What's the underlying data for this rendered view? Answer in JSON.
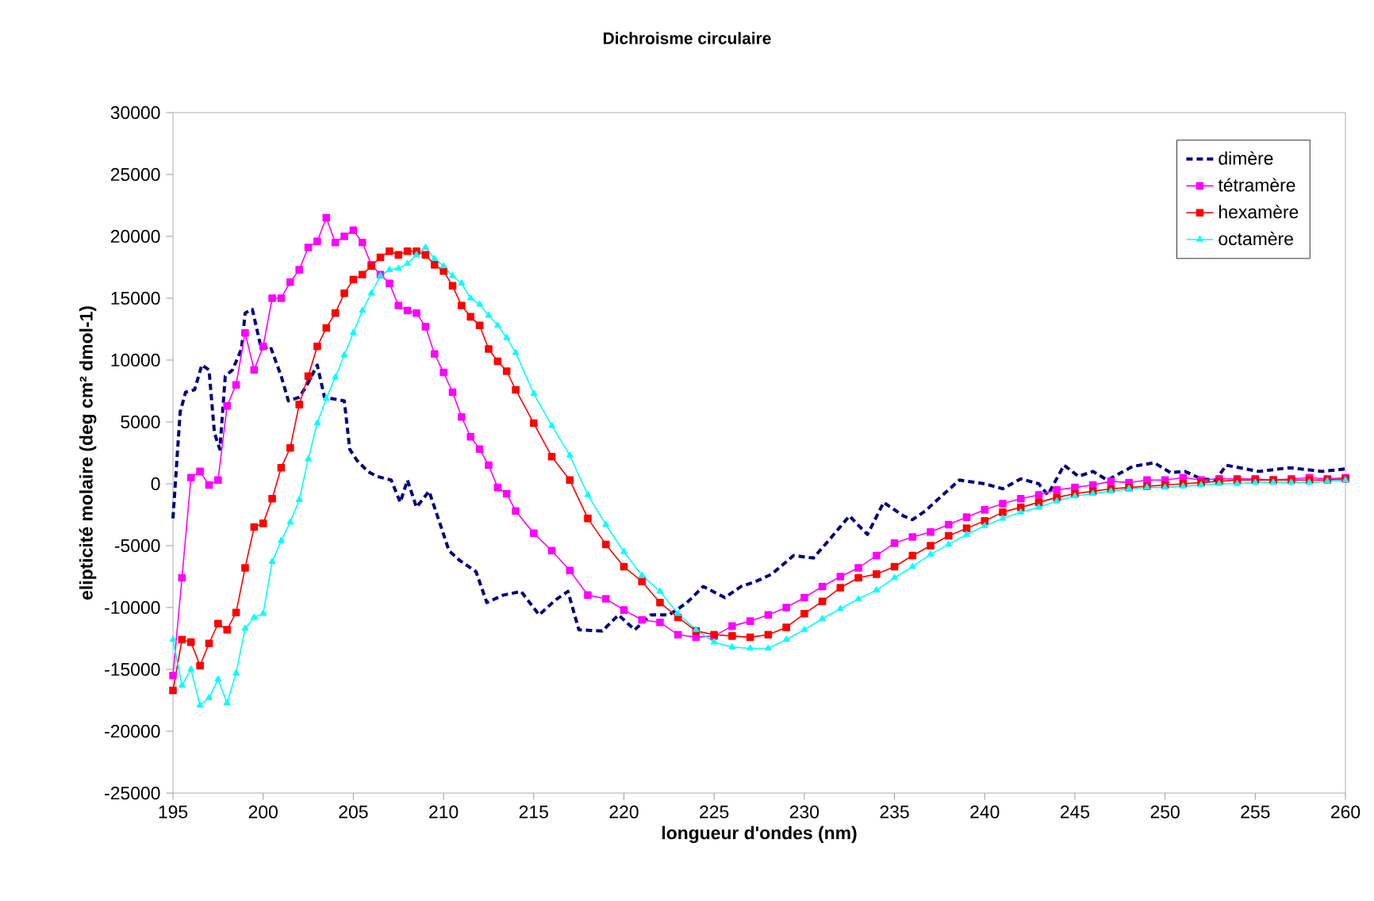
{
  "chart_data": {
    "type": "line",
    "title": "Dichroisme circulaire",
    "xlabel": "longueur d'ondes (nm)",
    "ylabel": "elipticité molaire (deg cm² dmol-1)",
    "xlim": [
      195,
      260
    ],
    "xticks": [
      195,
      200,
      205,
      210,
      215,
      220,
      225,
      230,
      235,
      240,
      245,
      250,
      255,
      260
    ],
    "ylim": [
      -25000,
      30000
    ],
    "yticks": [
      -25000,
      -20000,
      -15000,
      -10000,
      -5000,
      0,
      5000,
      10000,
      15000,
      20000,
      25000,
      30000
    ],
    "grid": false,
    "legend": "top right",
    "series": [
      {
        "name": "dimère",
        "color": "#000080",
        "line_style": "dashed",
        "marker": "none",
        "x": [
          195,
          195.2,
          195.4,
          195.7,
          196.2,
          196.6,
          197,
          197.3,
          197.6,
          197.9,
          198.3,
          198.8,
          199,
          199.4,
          199.9,
          200.4,
          201,
          201.4,
          202,
          202.4,
          203,
          203.4,
          204.5,
          204.8,
          205.2,
          205.8,
          206.3,
          207.1,
          207.6,
          208,
          208.5,
          209.2,
          209.8,
          210.3,
          210.9,
          211.8,
          212.4,
          213.3,
          214.3,
          215.3,
          216.2,
          216.9,
          217.5,
          218.8,
          219.7,
          220.6,
          221.5,
          222.5,
          223.5,
          224.4,
          225.6,
          226.5,
          227.3,
          228.2,
          229.4,
          230.5,
          231.4,
          232.5,
          233.5,
          234.4,
          235.5,
          236,
          236.7,
          237.6,
          238.6,
          240,
          241,
          242,
          243,
          243.5,
          244.4,
          245.2,
          246,
          246.8,
          248.2,
          249.4,
          250.3,
          251.1,
          252,
          252.8,
          253.4,
          255.2,
          256.9,
          258.7,
          260
        ],
        "values": [
          -2800,
          1500,
          5800,
          7400,
          7600,
          9600,
          9200,
          4100,
          2800,
          8700,
          9200,
          10900,
          13800,
          14100,
          10900,
          11100,
          8700,
          6700,
          7000,
          7900,
          9600,
          7000,
          6700,
          2800,
          1900,
          1000,
          600,
          300,
          -1500,
          300,
          -1900,
          -600,
          -3200,
          -5400,
          -6200,
          -7100,
          -9600,
          -9000,
          -8700,
          -10600,
          -9400,
          -8700,
          -11800,
          -11900,
          -10600,
          -11800,
          -10600,
          -10600,
          -9600,
          -8300,
          -9200,
          -8300,
          -7900,
          -7300,
          -5800,
          -6000,
          -4500,
          -2600,
          -4100,
          -1500,
          -2600,
          -2900,
          -2200,
          -1000,
          300,
          0,
          -400,
          400,
          0,
          -900,
          1500,
          600,
          1000,
          300,
          1400,
          1700,
          900,
          1000,
          400,
          300,
          1500,
          1000,
          1300,
          1000,
          1200
        ]
      },
      {
        "name": "tétramère",
        "color": "#ff00ff",
        "line_style": "solid",
        "marker": "square",
        "x": [
          195,
          195.5,
          196,
          196.5,
          197,
          197.5,
          198,
          198.5,
          199,
          199.5,
          200,
          200.5,
          201,
          201.5,
          202,
          202.5,
          203,
          203.5,
          204,
          204.5,
          205,
          205.5,
          206,
          206.5,
          207,
          207.5,
          208,
          208.5,
          209,
          209.5,
          210,
          210.5,
          211,
          211.5,
          212,
          212.5,
          213,
          213.5,
          214,
          215,
          216,
          217,
          218,
          219,
          220,
          221,
          222,
          223,
          224,
          225,
          226,
          227,
          228,
          229,
          230,
          231,
          232,
          233,
          234,
          235,
          236,
          237,
          238,
          239,
          240,
          241,
          242,
          243,
          244,
          245,
          246,
          247,
          248,
          249,
          250,
          251,
          252,
          253,
          254,
          255,
          256,
          257,
          258,
          259,
          260
        ],
        "values": [
          -15500,
          -7600,
          500,
          1000,
          -100,
          300,
          6300,
          8000,
          12200,
          9200,
          11100,
          15000,
          15000,
          16300,
          17300,
          19100,
          19600,
          21500,
          19500,
          20000,
          20500,
          19500,
          17700,
          16900,
          16200,
          14400,
          14000,
          13800,
          12700,
          10500,
          9000,
          7400,
          5400,
          3800,
          2800,
          1500,
          -300,
          -800,
          -2200,
          -4000,
          -5400,
          -7000,
          -9000,
          -9300,
          -10200,
          -11000,
          -11200,
          -12200,
          -12400,
          -12300,
          -11500,
          -11100,
          -10600,
          -10000,
          -9200,
          -8300,
          -7500,
          -6800,
          -5800,
          -4800,
          -4300,
          -3900,
          -3300,
          -2700,
          -2100,
          -1600,
          -1200,
          -900,
          -500,
          -300,
          -100,
          200,
          100,
          300,
          300,
          500,
          300,
          400,
          400,
          400,
          300,
          400,
          500,
          400,
          500
        ]
      },
      {
        "name": "hexamère",
        "color": "#ff0000",
        "line_style": "solid",
        "marker": "square",
        "x": [
          195,
          195.5,
          196,
          196.5,
          197,
          197.5,
          198,
          198.5,
          199,
          199.5,
          200,
          200.5,
          201,
          201.5,
          202,
          202.5,
          203,
          203.5,
          204,
          204.5,
          205,
          205.5,
          206,
          206.5,
          207,
          207.5,
          208,
          208.5,
          209,
          209.5,
          210,
          210.5,
          211,
          211.5,
          212,
          212.5,
          213,
          213.5,
          214,
          215,
          216,
          217,
          218,
          219,
          220,
          221,
          222,
          223,
          224,
          225,
          226,
          227,
          228,
          229,
          230,
          231,
          232,
          233,
          234,
          235,
          236,
          237,
          238,
          239,
          240,
          241,
          242,
          243,
          244,
          245,
          246,
          247,
          248,
          249,
          250,
          251,
          252,
          253,
          254,
          255,
          256,
          257,
          258,
          259,
          260
        ],
        "values": [
          -16700,
          -12600,
          -12800,
          -14700,
          -12900,
          -11300,
          -11800,
          -10400,
          -6800,
          -3500,
          -3200,
          -1200,
          1300,
          2900,
          6400,
          8700,
          11100,
          12600,
          13800,
          15400,
          16500,
          16900,
          17600,
          18300,
          18800,
          18500,
          18800,
          18800,
          18500,
          17700,
          17200,
          16000,
          14400,
          13500,
          12800,
          10900,
          9900,
          9100,
          7600,
          4900,
          2200,
          300,
          -2800,
          -4900,
          -6700,
          -7900,
          -9600,
          -10800,
          -11900,
          -12200,
          -12300,
          -12400,
          -12200,
          -11600,
          -10500,
          -9500,
          -8400,
          -7600,
          -7300,
          -6700,
          -5800,
          -5000,
          -4200,
          -3600,
          -3000,
          -2300,
          -1900,
          -1500,
          -1100,
          -800,
          -600,
          -400,
          -300,
          -200,
          -100,
          0,
          100,
          200,
          300,
          300,
          300,
          300,
          300,
          300,
          400
        ]
      },
      {
        "name": "octamère",
        "color": "#00ffff",
        "line_style": "solid",
        "marker": "triangle",
        "x": [
          195,
          195.5,
          196,
          196.5,
          197,
          197.5,
          198,
          198.5,
          199,
          199.5,
          200,
          200.5,
          201,
          201.5,
          202,
          202.5,
          203,
          203.5,
          204,
          204.5,
          205,
          205.5,
          206,
          206.5,
          207,
          207.5,
          208,
          208.5,
          209,
          209.5,
          210,
          210.5,
          211,
          211.5,
          212,
          212.5,
          213,
          213.5,
          214,
          215,
          216,
          217,
          218,
          219,
          220,
          221,
          222,
          223,
          224,
          225,
          226,
          227,
          228,
          229,
          230,
          231,
          232,
          233,
          234,
          235,
          236,
          237,
          238,
          239,
          240,
          241,
          242,
          243,
          244,
          245,
          246,
          247,
          248,
          249,
          250,
          251,
          252,
          253,
          254,
          255,
          256,
          257,
          258,
          259,
          260
        ],
        "values": [
          -12600,
          -16300,
          -15000,
          -17900,
          -17300,
          -15800,
          -17700,
          -15300,
          -11700,
          -10800,
          -10500,
          -6300,
          -4600,
          -3100,
          -1300,
          2000,
          4900,
          6900,
          8600,
          10400,
          12200,
          14000,
          15400,
          16800,
          17300,
          17400,
          17800,
          18500,
          19100,
          18200,
          17600,
          16800,
          16200,
          15000,
          14500,
          13600,
          12800,
          11800,
          10600,
          7300,
          4700,
          2300,
          -900,
          -3300,
          -5500,
          -7400,
          -8700,
          -10500,
          -11800,
          -12800,
          -13200,
          -13300,
          -13300,
          -12600,
          -11800,
          -10900,
          -10100,
          -9300,
          -8600,
          -7600,
          -6700,
          -5700,
          -4900,
          -4100,
          -3400,
          -2800,
          -2300,
          -1900,
          -1400,
          -1000,
          -800,
          -600,
          -400,
          -300,
          -300,
          -200,
          -100,
          0,
          0,
          100,
          100,
          100,
          100,
          200,
          300
        ]
      }
    ]
  }
}
